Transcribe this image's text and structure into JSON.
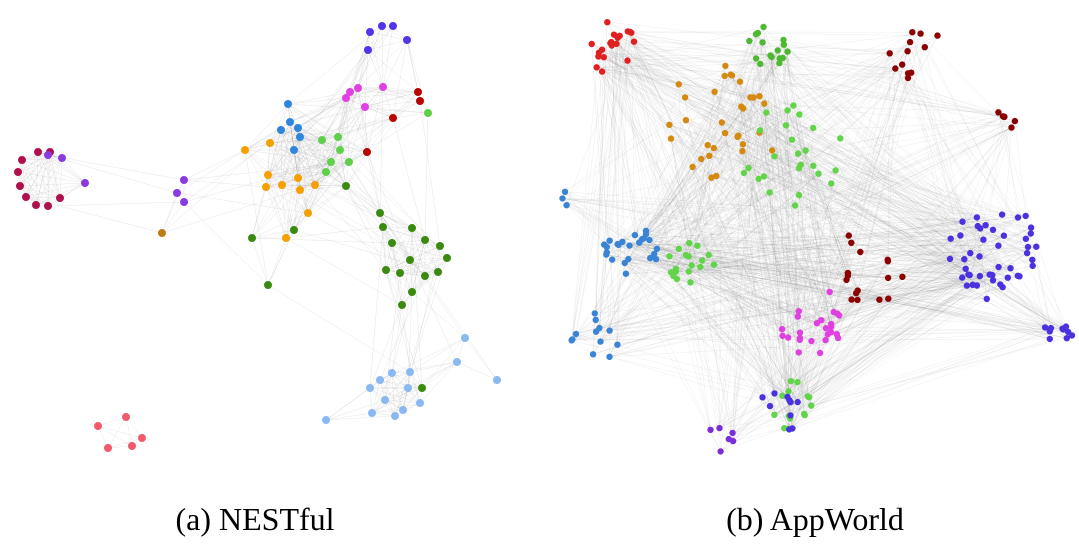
{
  "panels": [
    {
      "caption": "(a) NESTful"
    },
    {
      "caption": "(b) AppWorld"
    }
  ]
}
